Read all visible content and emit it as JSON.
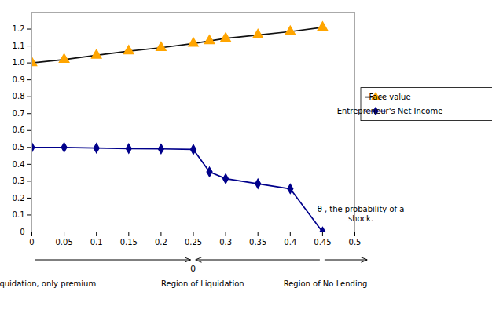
{
  "chart_data": {
    "type": "line",
    "x": [
      0.0,
      0.05,
      0.1,
      0.15,
      0.2,
      0.25,
      0.275,
      0.3,
      0.35,
      0.4,
      0.45
    ],
    "series": [
      {
        "name": "Face value",
        "color": "#111111",
        "marker": "triangle",
        "colors": [
          "#FFA500",
          "#FFA500",
          "#FFA500",
          "#FFA500",
          "#FFA500",
          "#FFA500",
          "#FFA500",
          "#FFA500",
          "#FFA500",
          "#FFA500",
          "#FFA500"
        ],
        "values": [
          1.0,
          1.02,
          1.045,
          1.07,
          1.09,
          1.115,
          1.13,
          1.145,
          1.165,
          1.185,
          1.21
        ]
      },
      {
        "name": "Entrepreneur's Net Income",
        "color": "#00008B",
        "marker": "diamond",
        "values": [
          0.5,
          0.5,
          0.496,
          0.493,
          0.491,
          0.488,
          0.355,
          0.315,
          0.285,
          0.255,
          0.0
        ]
      }
    ],
    "xlim": [
      0,
      0.5
    ],
    "xticks": [
      0,
      0.05,
      0.1,
      0.15,
      0.2,
      0.25,
      0.3,
      0.35,
      0.4,
      0.45,
      0.5
    ],
    "ylim": [
      0,
      1.3
    ],
    "yticks": [
      0,
      0.1,
      0.2,
      0.3,
      0.4,
      0.5,
      0.6,
      0.7,
      0.8,
      0.9,
      {
        "value": 1,
        "label": "1.0"
      },
      1.1,
      1.2
    ],
    "grid": false,
    "legend": "right",
    "annotations": [
      {
        "text": "θ , the probability of a\nshock."
      },
      {
        "text": "θ",
        "x": 0.25
      },
      {
        "text": "No Liquidation, only premium",
        "x": 0
      },
      {
        "text": "Region of Liquidation",
        "x": 0.25
      },
      {
        "text": "Region of No Lending",
        "x": 0.45
      }
    ]
  }
}
